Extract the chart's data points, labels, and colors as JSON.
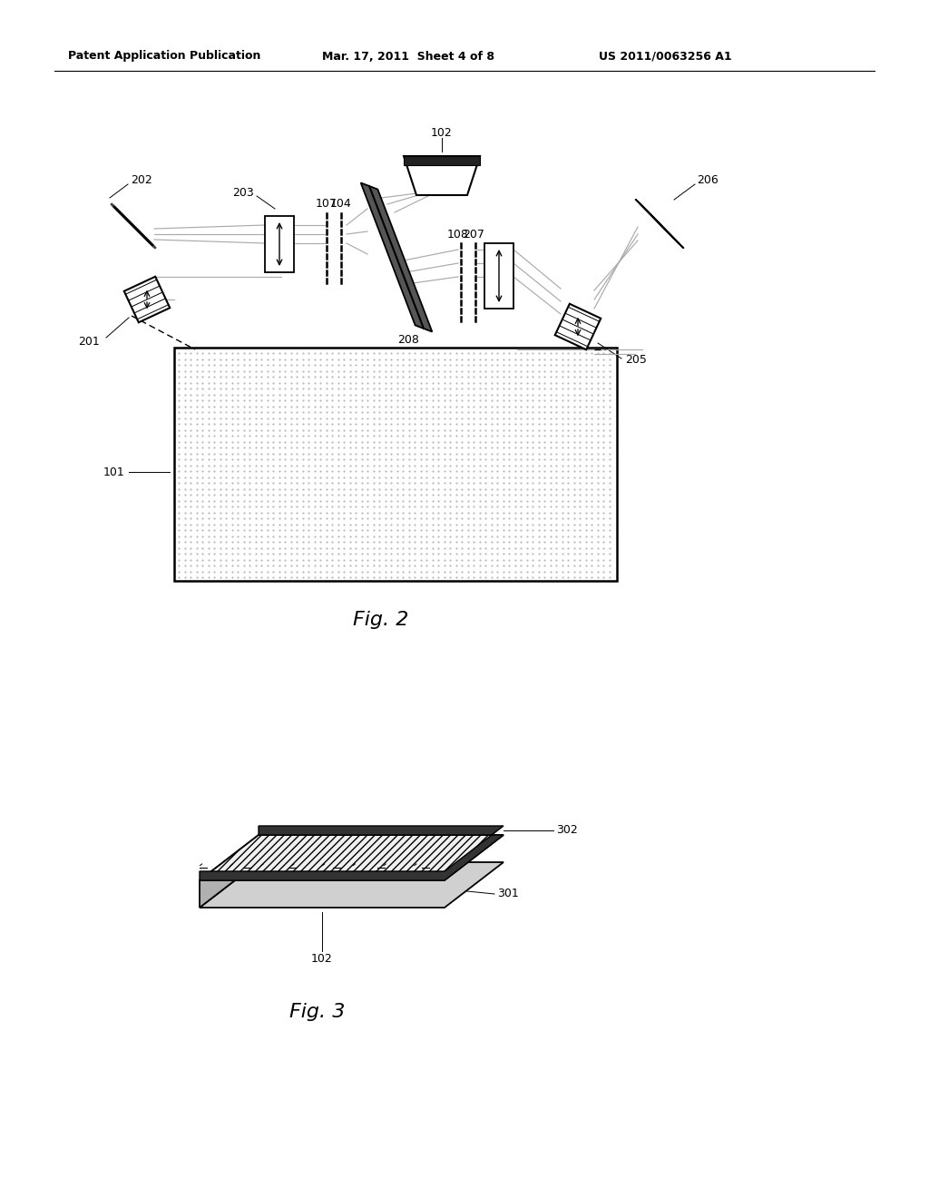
{
  "title_left": "Patent Application Publication",
  "title_center": "Mar. 17, 2011  Sheet 4 of 8",
  "title_right": "US 2011/0063256 A1",
  "fig2_label": "Fig. 2",
  "fig3_label": "Fig. 3",
  "bg_color": "#ffffff",
  "line_color": "#000000"
}
